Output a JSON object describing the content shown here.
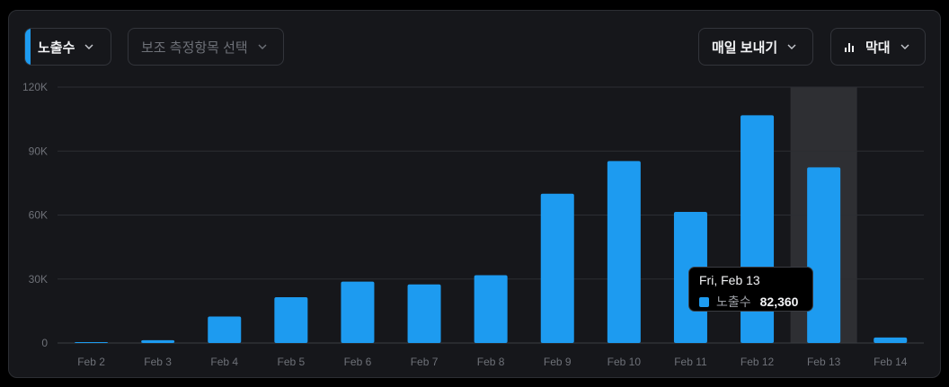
{
  "controls": {
    "metric_label": "노출수",
    "secondary_placeholder": "보조 측정항목 선택",
    "export_label": "매일 보내기",
    "chart_type_label": "막대"
  },
  "chart_data": {
    "type": "bar",
    "categories": [
      "Feb 2",
      "Feb 3",
      "Feb 4",
      "Feb 5",
      "Feb 6",
      "Feb 7",
      "Feb 8",
      "Feb 9",
      "Feb 10",
      "Feb 11",
      "Feb 12",
      "Feb 13",
      "Feb 14"
    ],
    "series": [
      {
        "name": "노출수",
        "values": [
          400,
          1300,
          12400,
          21500,
          28800,
          27500,
          31800,
          70000,
          85300,
          61500,
          106800,
          82360,
          2600
        ]
      }
    ],
    "ylim": [
      0,
      120000
    ],
    "yticks": [
      0,
      30000,
      60000,
      90000,
      120000
    ],
    "ytick_labels": [
      "0",
      "30K",
      "60K",
      "90K",
      "120K"
    ],
    "grid": true,
    "highlight_index": 11,
    "colors": {
      "bar": "#1d9bf0",
      "highlight_band": "#2e2f33"
    }
  },
  "tooltip": {
    "date": "Fri, Feb 13",
    "series_label": "노출수",
    "value": "82,360"
  }
}
